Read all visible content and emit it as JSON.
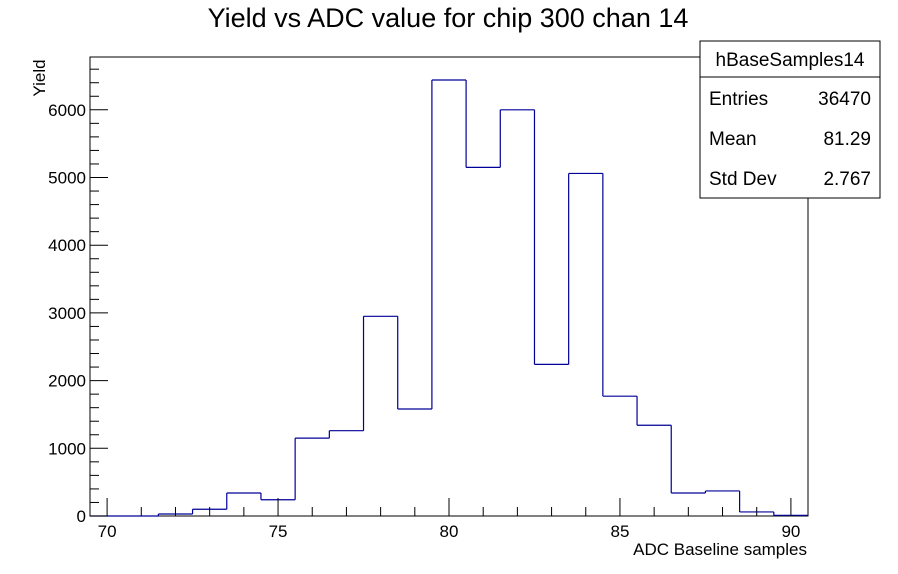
{
  "chart_data": {
    "type": "histogram",
    "title": "Yield vs ADC value for chip 300 chan 14",
    "xlabel": "ADC Baseline samples",
    "ylabel": "Yield",
    "xlim": [
      69.5,
      90.5
    ],
    "ylim": [
      0,
      6780
    ],
    "bin_width": 1,
    "bins": [
      {
        "x": 70,
        "y": 0
      },
      {
        "x": 71,
        "y": 0
      },
      {
        "x": 72,
        "y": 30
      },
      {
        "x": 73,
        "y": 100
      },
      {
        "x": 74,
        "y": 340
      },
      {
        "x": 75,
        "y": 240
      },
      {
        "x": 76,
        "y": 1150
      },
      {
        "x": 77,
        "y": 1260
      },
      {
        "x": 78,
        "y": 2950
      },
      {
        "x": 79,
        "y": 1580
      },
      {
        "x": 80,
        "y": 6440
      },
      {
        "x": 81,
        "y": 5150
      },
      {
        "x": 82,
        "y": 6000
      },
      {
        "x": 83,
        "y": 2240
      },
      {
        "x": 84,
        "y": 5060
      },
      {
        "x": 85,
        "y": 1770
      },
      {
        "x": 86,
        "y": 1340
      },
      {
        "x": 87,
        "y": 340
      },
      {
        "x": 88,
        "y": 370
      },
      {
        "x": 89,
        "y": 60
      },
      {
        "x": 90,
        "y": 10
      }
    ],
    "x_ticks": [
      70,
      75,
      80,
      85,
      90
    ],
    "y_ticks": [
      0,
      1000,
      2000,
      3000,
      4000,
      5000,
      6000
    ],
    "line_color": "#000099",
    "stats_box": {
      "name": "hBaseSamples14",
      "rows": [
        {
          "label": "Entries",
          "value": "36470"
        },
        {
          "label": "Mean",
          "value": "81.29"
        },
        {
          "label": "Std Dev",
          "value": "2.767"
        }
      ]
    }
  }
}
